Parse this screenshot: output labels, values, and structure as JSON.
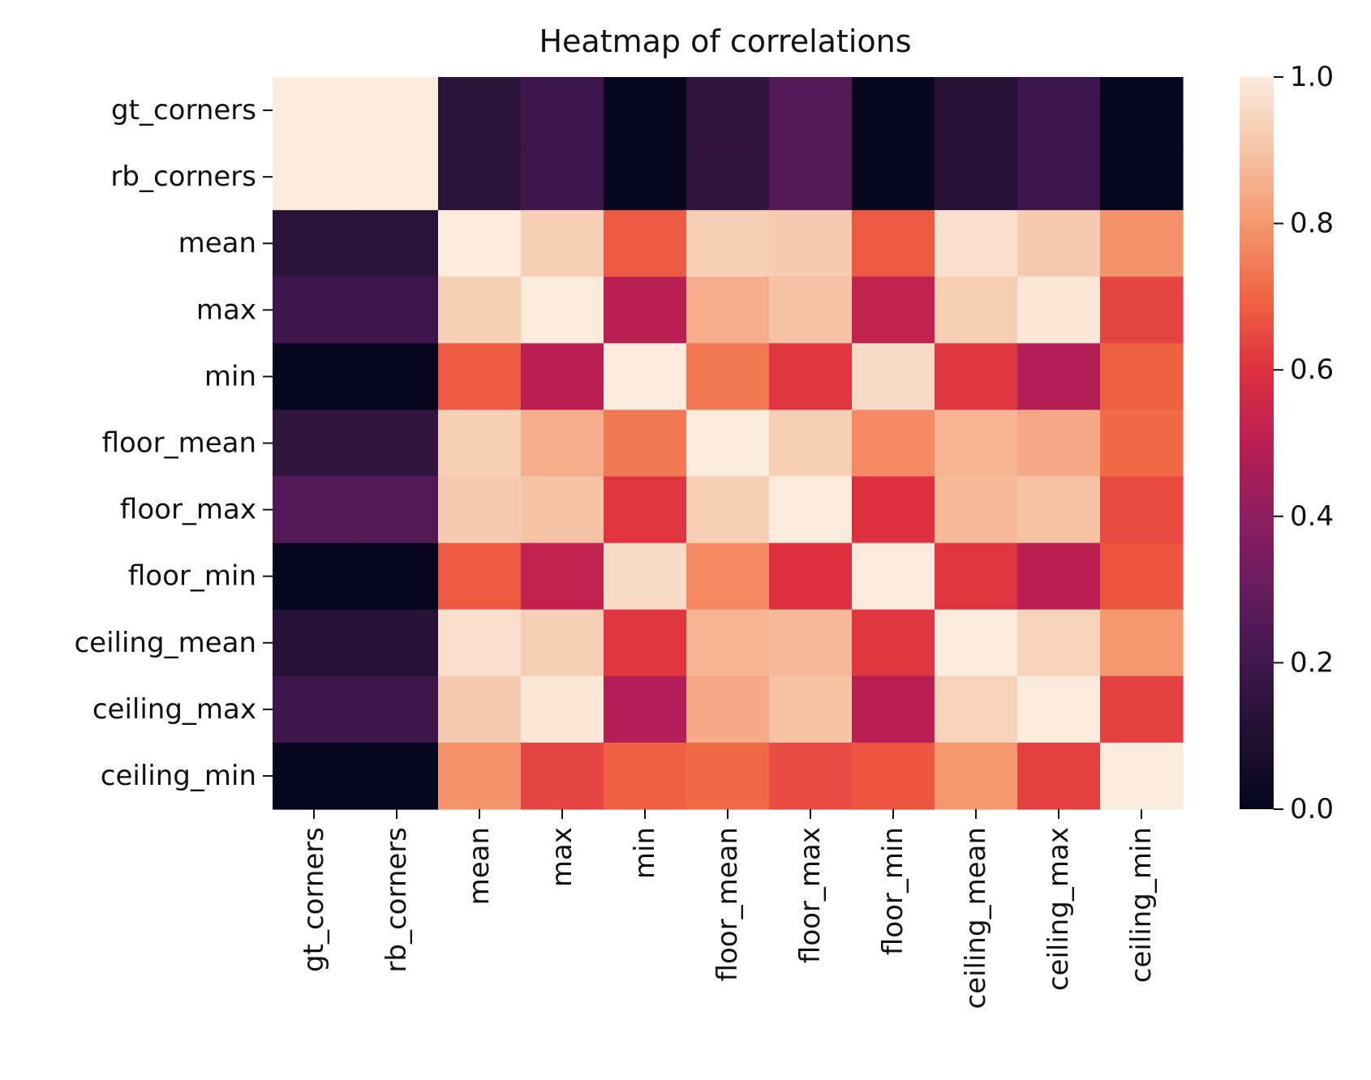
{
  "chart_data": {
    "type": "heatmap",
    "title": "Heatmap of correlations",
    "xlabel": "",
    "ylabel": "",
    "x_labels": [
      "gt_corners",
      "rb_corners",
      "mean",
      "max",
      "min",
      "floor_mean",
      "floor_max",
      "floor_min",
      "ceiling_mean",
      "ceiling_max",
      "ceiling_min"
    ],
    "y_labels": [
      "gt_corners",
      "rb_corners",
      "mean",
      "max",
      "min",
      "floor_mean",
      "floor_max",
      "floor_min",
      "ceiling_mean",
      "ceiling_max",
      "ceiling_min"
    ],
    "values": [
      [
        1.0,
        1.0,
        0.13,
        0.19,
        0.02,
        0.15,
        0.25,
        0.02,
        0.12,
        0.19,
        0.01
      ],
      [
        1.0,
        1.0,
        0.13,
        0.19,
        0.02,
        0.15,
        0.25,
        0.02,
        0.12,
        0.19,
        0.01
      ],
      [
        0.13,
        0.13,
        1.0,
        0.93,
        0.68,
        0.93,
        0.92,
        0.68,
        0.97,
        0.92,
        0.79
      ],
      [
        0.19,
        0.19,
        0.93,
        1.0,
        0.5,
        0.85,
        0.9,
        0.52,
        0.93,
        0.99,
        0.64
      ],
      [
        0.02,
        0.02,
        0.68,
        0.5,
        1.0,
        0.74,
        0.61,
        0.96,
        0.61,
        0.48,
        0.69
      ],
      [
        0.15,
        0.15,
        0.93,
        0.85,
        0.74,
        1.0,
        0.93,
        0.77,
        0.87,
        0.84,
        0.71
      ],
      [
        0.25,
        0.25,
        0.92,
        0.9,
        0.61,
        0.93,
        1.0,
        0.6,
        0.88,
        0.9,
        0.65
      ],
      [
        0.02,
        0.02,
        0.68,
        0.52,
        0.96,
        0.77,
        0.6,
        1.0,
        0.61,
        0.5,
        0.67
      ],
      [
        0.12,
        0.12,
        0.97,
        0.93,
        0.61,
        0.87,
        0.88,
        0.61,
        1.0,
        0.94,
        0.8
      ],
      [
        0.19,
        0.19,
        0.92,
        0.99,
        0.48,
        0.84,
        0.9,
        0.5,
        0.94,
        1.0,
        0.63
      ],
      [
        0.01,
        0.01,
        0.79,
        0.64,
        0.69,
        0.71,
        0.65,
        0.67,
        0.8,
        0.63,
        1.0
      ]
    ],
    "colorbar": {
      "min": 0.0,
      "max": 1.0,
      "ticks": [
        "0.0",
        "0.2",
        "0.4",
        "0.6",
        "0.8",
        "1.0"
      ],
      "tick_values": [
        0.0,
        0.2,
        0.4,
        0.6,
        0.8,
        1.0
      ],
      "colormap": "rocket"
    },
    "grid": false,
    "legend": "colorbar-right"
  }
}
